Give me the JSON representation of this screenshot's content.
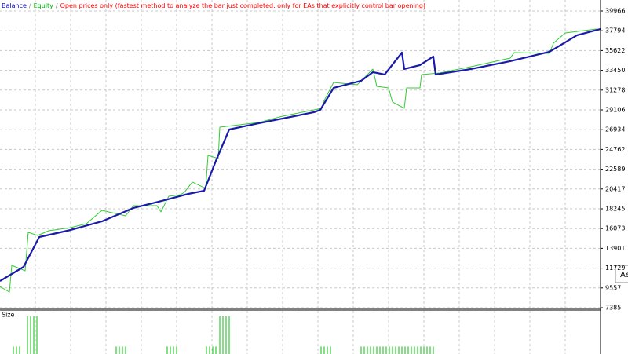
{
  "chart_data": [
    {
      "type": "line",
      "legend": [
        {
          "text": "Balance",
          "color": "#0000c8"
        },
        {
          "text": "/",
          "color": "#808080"
        },
        {
          "text": "Equity",
          "color": "#00b000"
        },
        {
          "text": "/",
          "color": "#808080"
        },
        {
          "text": "Open prices only (fastest method to analyze the bar just completed. only for EAs that explicitly control bar opening)",
          "color": "#ff0000"
        }
      ],
      "ylim": [
        7385,
        39966
      ],
      "yticks": [
        39966,
        37794,
        35622,
        33450,
        31278,
        29106,
        26934,
        24762,
        22589,
        20417,
        18245,
        16073,
        13901,
        11729,
        9557,
        7385
      ],
      "xlim": [
        0,
        765
      ],
      "grid": true,
      "tooltip": "Ae",
      "series": [
        {
          "name": "Equity",
          "color": "#33cc33",
          "x": [
            0,
            12,
            15,
            32,
            36,
            48,
            62,
            90,
            110,
            130,
            160,
            170,
            200,
            205,
            215,
            230,
            235,
            245,
            262,
            265,
            278,
            280,
            330,
            360,
            410,
            412,
            425,
            455,
            460,
            475,
            480,
            495,
            500,
            515,
            518,
            535,
            537,
            560,
            600,
            650,
            655,
            700,
            705,
            720,
            760
          ],
          "values": [
            9712,
            9109,
            12040,
            11436,
            15660,
            15315,
            15832,
            16178,
            16609,
            18074,
            17471,
            18591,
            18591,
            17901,
            19625,
            19798,
            20057,
            21178,
            20488,
            24107,
            23762,
            27211,
            27728,
            28418,
            29280,
            29969,
            32124,
            31866,
            32297,
            33590,
            31693,
            31521,
            29969,
            29280,
            31521,
            31521,
            32986,
            33159,
            33848,
            34797,
            35400,
            35314,
            36435,
            37556,
            37986
          ]
        },
        {
          "name": "Balance",
          "color": "#1a1aaa",
          "x": [
            0,
            30,
            50,
            90,
            130,
            170,
            210,
            240,
            260,
            275,
            292,
            330,
            400,
            408,
            425,
            460,
            475,
            490,
            512,
            515,
            535,
            552,
            555,
            600,
            650,
            700,
            735,
            765
          ],
          "values": [
            10316,
            11867,
            15143,
            15919,
            16867,
            18332,
            19195,
            19884,
            20229,
            23504,
            26953,
            27642,
            28849,
            29107,
            31521,
            32297,
            33245,
            32986,
            35400,
            33590,
            34021,
            34969,
            32986,
            33590,
            34452,
            35487,
            37297,
            37986
          ]
        }
      ]
    },
    {
      "type": "bar",
      "title": "Size",
      "color": "#33cc33",
      "ylim": [
        0,
        5.5
      ],
      "xlim": [
        0,
        765
      ],
      "x": [
        17,
        21,
        25,
        35,
        39,
        43,
        47,
        148,
        152,
        156,
        160,
        213,
        217,
        221,
        225,
        263,
        267,
        271,
        275,
        280,
        284,
        288,
        292,
        409,
        413,
        417,
        421,
        460,
        464,
        468,
        472,
        476,
        480,
        484,
        488,
        492,
        496,
        500,
        504,
        508,
        512,
        516,
        520,
        524,
        528,
        532,
        536,
        540,
        544,
        548,
        552
      ],
      "values": [
        1,
        1,
        1,
        5,
        5,
        5,
        5,
        1,
        1,
        1,
        1,
        1,
        1,
        1,
        1,
        1,
        1,
        1,
        1,
        5,
        5,
        5,
        5,
        1,
        1,
        1,
        1,
        1,
        1,
        1,
        1,
        1,
        1,
        1,
        1,
        1,
        1,
        1,
        1,
        1,
        1,
        1,
        1,
        1,
        1,
        1,
        1,
        1,
        1,
        1,
        1
      ]
    }
  ]
}
